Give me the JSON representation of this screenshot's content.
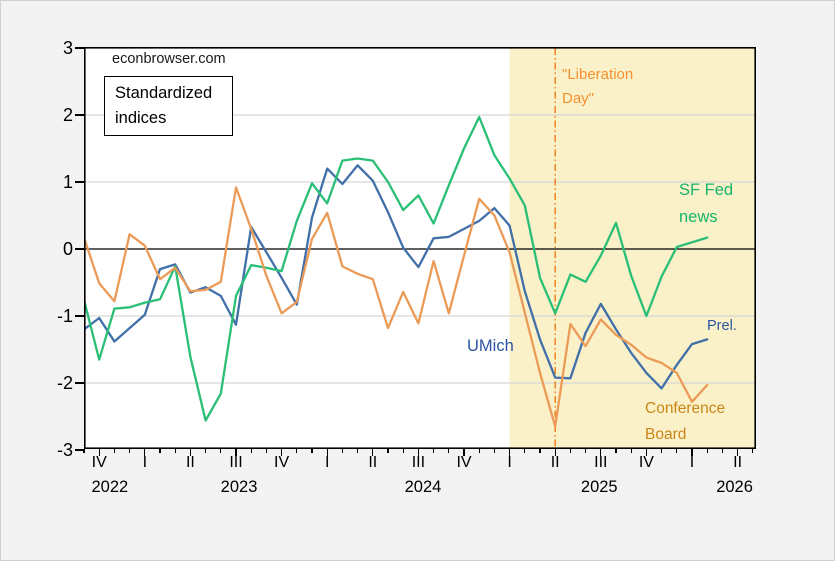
{
  "page": {
    "watermark": "econbrowser.com"
  },
  "annotations": {
    "index_box": "Standardized\nindices",
    "liberation_day": "\"Liberation\nDay\"",
    "sf_fed": "SF Fed\nnews",
    "umich": "UMich",
    "prel": "Prel.",
    "conference_board": "Conference\nBoard"
  },
  "chart_data": {
    "type": "line",
    "title": "Standardized indices",
    "ylim": [
      -3,
      3
    ],
    "yticks": [
      3,
      2,
      1,
      0,
      -1,
      -2,
      -3
    ],
    "grid": true,
    "grid_color": "#d6d6d6",
    "zero_line_color": "#000000",
    "plot_bg": "#ffffff",
    "x_axis": {
      "unit": "months from first observation (monthly data, Sep 2022 start)",
      "months_total": 44.2,
      "minor_tick_every_month": true,
      "quarter_labels": [
        {
          "label": "IV",
          "m": 1
        },
        {
          "label": "I",
          "m": 4
        },
        {
          "label": "II",
          "m": 7
        },
        {
          "label": "III",
          "m": 10
        },
        {
          "label": "IV",
          "m": 13
        },
        {
          "label": "I",
          "m": 16
        },
        {
          "label": "II",
          "m": 19
        },
        {
          "label": "III",
          "m": 22
        },
        {
          "label": "IV",
          "m": 25
        },
        {
          "label": "I",
          "m": 28
        },
        {
          "label": "II",
          "m": 31
        },
        {
          "label": "III",
          "m": 34
        },
        {
          "label": "IV",
          "m": 37
        },
        {
          "label": "I",
          "m": 40
        },
        {
          "label": "II",
          "m": 43
        }
      ],
      "year_labels": [
        {
          "label": "2022",
          "m": 1.7
        },
        {
          "label": "2023",
          "m": 10.2
        },
        {
          "label": "2024",
          "m": 22.3
        },
        {
          "label": "2025",
          "m": 33.9
        },
        {
          "label": "2026",
          "m": 42.8
        }
      ]
    },
    "shade": {
      "start_m": 28,
      "end_m": 44.2,
      "color": "#faf1c8"
    },
    "vline": {
      "m": 31,
      "color": "#f08222",
      "style": "dash-dot",
      "label": "\"Liberation Day\""
    },
    "series": [
      {
        "name": "UMich",
        "color": "#4170a8",
        "start_m": 0,
        "step_m": 1,
        "values": [
          -1.2,
          -1.03,
          -1.38,
          -1.18,
          -0.98,
          -0.3,
          -0.23,
          -0.65,
          -0.57,
          -0.7,
          -1.13,
          0.33,
          -0.05,
          -0.43,
          -0.83,
          0.47,
          1.2,
          0.97,
          1.25,
          1.02,
          0.55,
          0.02,
          -0.27,
          0.16,
          0.18,
          0.3,
          0.42,
          0.61,
          0.35,
          -0.63,
          -1.35,
          -1.92,
          -1.93,
          -1.25,
          -0.82,
          -1.2,
          -1.55,
          -1.85,
          -2.08,
          -1.73,
          -1.42,
          -1.35
        ]
      },
      {
        "name": "SF Fed news",
        "color": "#2abf76",
        "start_m": 0,
        "step_m": 1,
        "values": [
          -0.76,
          -1.65,
          -0.89,
          -0.87,
          -0.8,
          -0.75,
          -0.26,
          -1.61,
          -2.56,
          -2.16,
          -0.7,
          -0.24,
          -0.28,
          -0.33,
          0.42,
          0.98,
          0.68,
          1.32,
          1.35,
          1.32,
          1.0,
          0.58,
          0.8,
          0.38,
          0.95,
          1.5,
          1.97,
          1.4,
          1.05,
          0.65,
          -0.43,
          -0.96,
          -0.38,
          -0.49,
          -0.1,
          0.39,
          -0.4,
          -1.0,
          -0.41,
          0.03,
          0.1,
          0.17
        ]
      },
      {
        "name": "Conference Board",
        "color": "#eb9b57",
        "start_m": 0,
        "step_m": 1,
        "values": [
          0.17,
          -0.51,
          -0.78,
          0.22,
          0.05,
          -0.45,
          -0.28,
          -0.63,
          -0.61,
          -0.49,
          0.92,
          0.3,
          -0.4,
          -0.96,
          -0.79,
          0.15,
          0.54,
          -0.26,
          -0.37,
          -0.45,
          -1.18,
          -0.64,
          -1.11,
          -0.18,
          -0.96,
          -0.1,
          0.75,
          0.5,
          -0.05,
          -0.95,
          -1.85,
          -2.65,
          -1.12,
          -1.45,
          -1.05,
          -1.28,
          -1.43,
          -1.62,
          -1.7,
          -1.85,
          -2.28,
          -2.03
        ]
      }
    ]
  }
}
